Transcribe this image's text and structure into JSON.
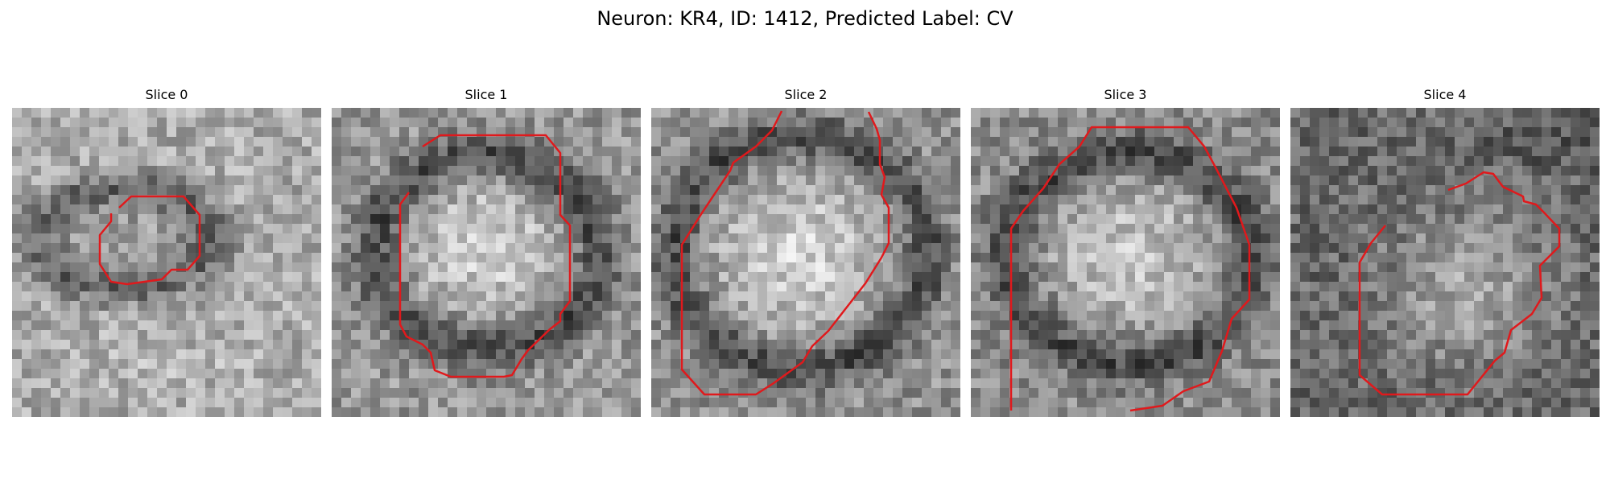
{
  "figure": {
    "title": "Neuron: KR4, ID: 1412, Predicted Label: CV"
  },
  "panels": [
    {
      "label": "Slice 0",
      "image": "noisy grayscale micrograph slice",
      "contour_color": "#e0191c"
    },
    {
      "label": "Slice 1",
      "image": "noisy grayscale micrograph slice",
      "contour_color": "#e0191c"
    },
    {
      "label": "Slice 2",
      "image": "noisy grayscale micrograph slice",
      "contour_color": "#e0191c"
    },
    {
      "label": "Slice 3",
      "image": "noisy grayscale micrograph slice",
      "contour_color": "#e0191c"
    },
    {
      "label": "Slice 4",
      "image": "noisy grayscale micrograph slice",
      "contour_color": "#e0191c"
    }
  ]
}
